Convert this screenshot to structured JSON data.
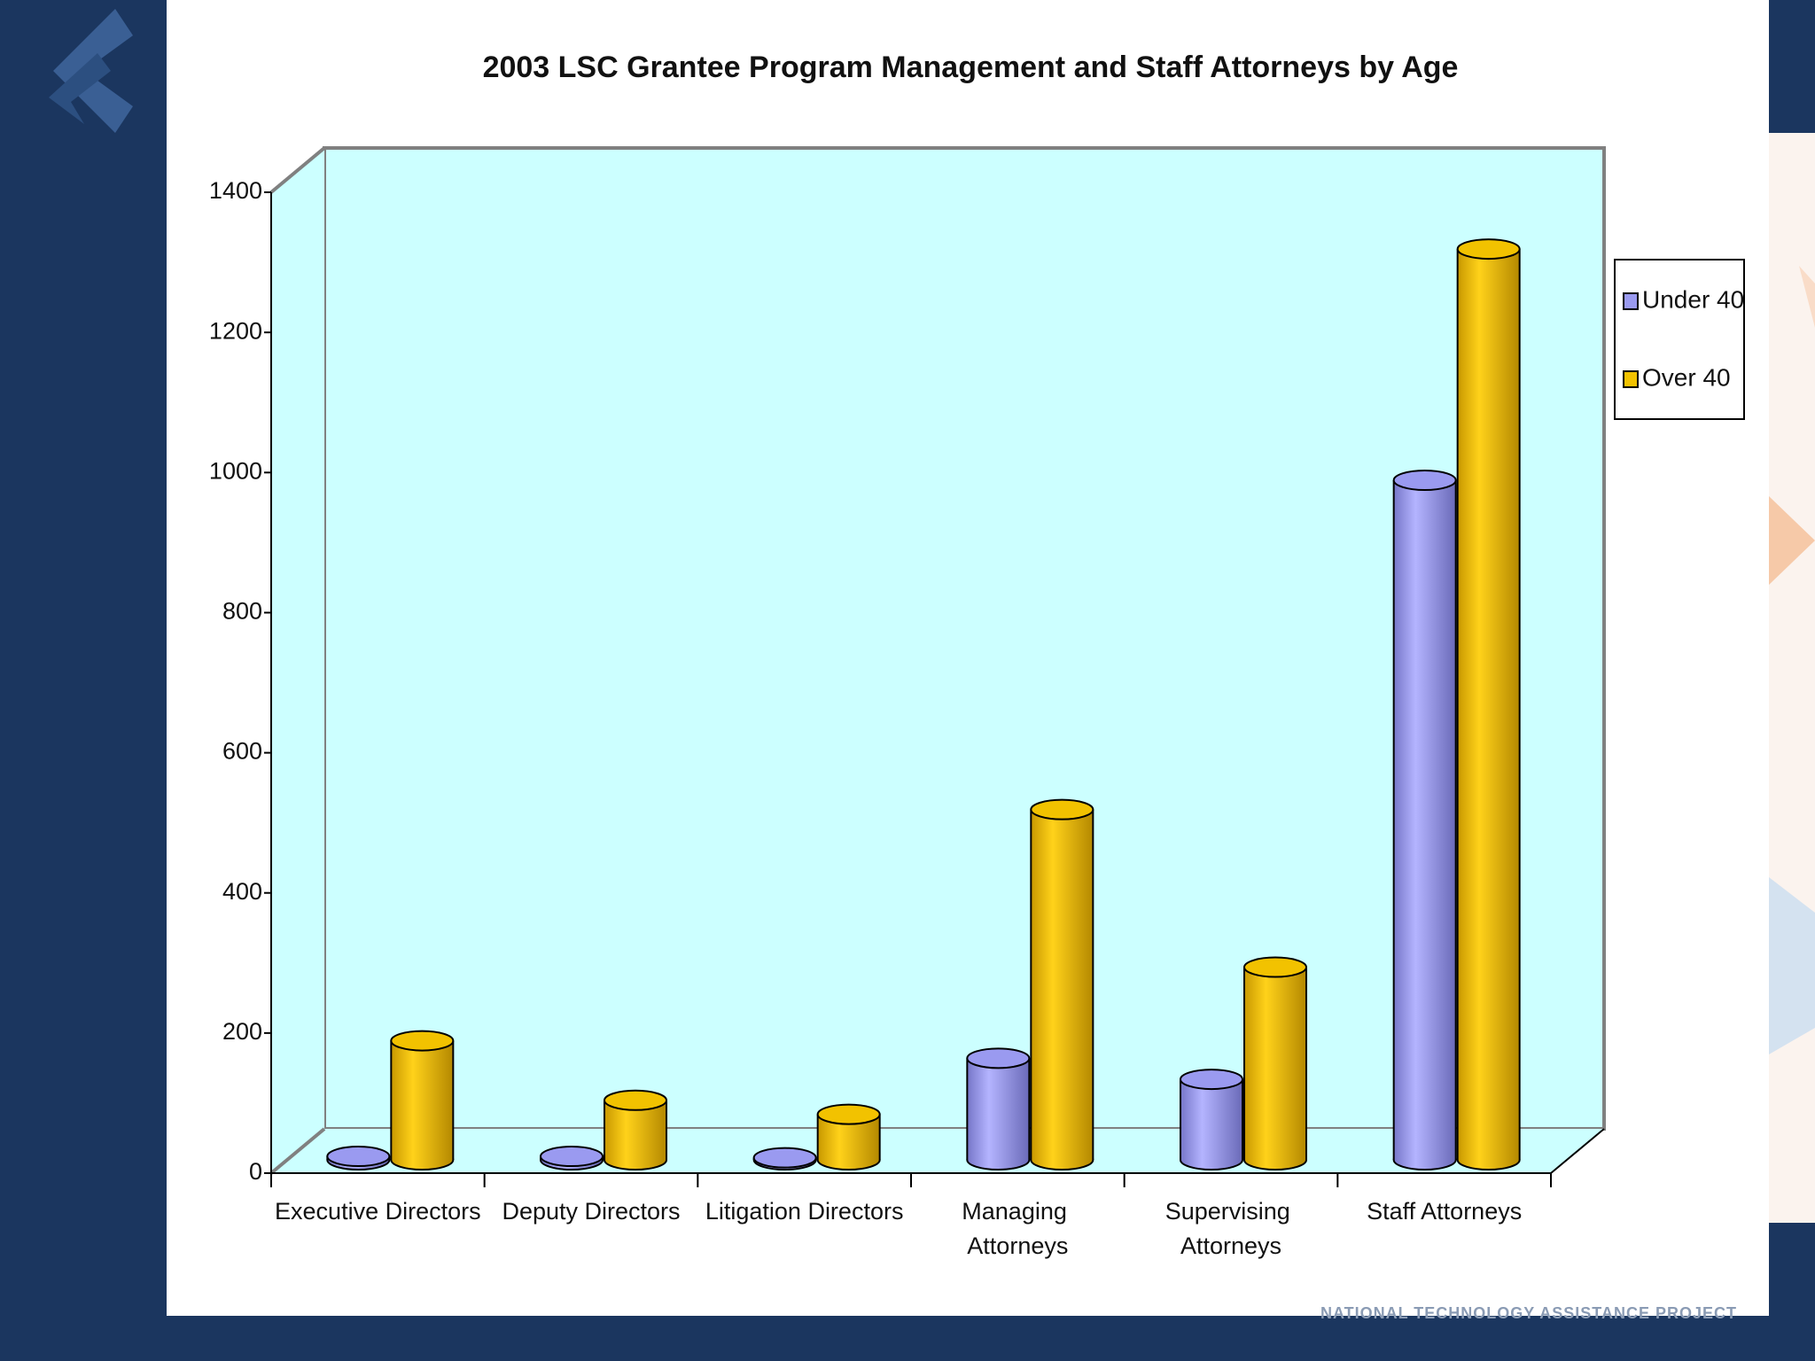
{
  "chart_data": {
    "type": "bar3d",
    "title": "2003 LSC Grantee Program Management and Staff Attorneys by Age",
    "categories": [
      "Executive Directors",
      "Deputy Directors",
      "Litigation Directors",
      "Managing Attorneys",
      "Supervising Attorneys",
      "Staff Attorneys"
    ],
    "series": [
      {
        "name": "Under 40",
        "color": "#9a9af0",
        "values": [
          5,
          5,
          3,
          145,
          115,
          970
        ]
      },
      {
        "name": "Over 40",
        "color": "#f2c200",
        "values": [
          170,
          85,
          65,
          500,
          275,
          1300
        ]
      }
    ],
    "ylim": [
      0,
      1400
    ],
    "yticks": [
      0,
      200,
      400,
      600,
      800,
      1000,
      1200,
      1400
    ],
    "legend": "right"
  },
  "footer": "NATIONAL TECHNOLOGY ASSISTANCE PROJECT"
}
